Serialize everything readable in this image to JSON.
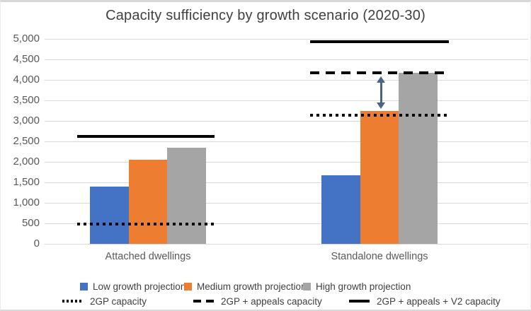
{
  "chart_data": {
    "type": "bar",
    "title": "Capacity sufficiency by growth scenario (2020-30)",
    "categories": [
      "Attached dwellings",
      "Standalone dwellings"
    ],
    "series": [
      {
        "name": "Low growth projection",
        "color": "#4472C4",
        "values": [
          1390,
          1670
        ]
      },
      {
        "name": "Medium growth projection",
        "color": "#ED7D31",
        "values": [
          2050,
          3250
        ]
      },
      {
        "name": "High growth projection",
        "color": "#A5A5A5",
        "values": [
          2340,
          4180
        ]
      }
    ],
    "capacity_lines": [
      {
        "name": "2GP capacity",
        "style": "dotted",
        "color": "#000000",
        "values": [
          480,
          3140
        ]
      },
      {
        "name": "2GP + appeals capacity",
        "style": "dashed",
        "color": "#000000",
        "values": [
          null,
          4180
        ]
      },
      {
        "name": "2GP + appeals + V2 capacity",
        "style": "solid",
        "color": "#000000",
        "values": [
          2620,
          4930
        ]
      }
    ],
    "annotation": {
      "type": "double-headed-arrow",
      "category": "Standalone dwellings",
      "from_value": 3250,
      "to_value": 4180,
      "color": "#4A6485"
    },
    "y_axis": {
      "min": 0,
      "max": 5000,
      "step": 500,
      "tick_labels": [
        "0",
        "500",
        "1,000",
        "1,500",
        "2,000",
        "2,500",
        "3,000",
        "3,500",
        "4,000",
        "4,500",
        "5,000"
      ]
    },
    "grid": true,
    "gridline_color": "#D9D9D9",
    "legend_position": "bottom"
  }
}
